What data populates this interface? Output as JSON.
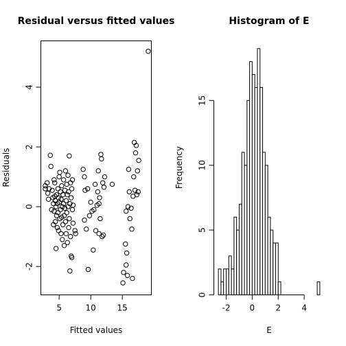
{
  "chart_data": [
    {
      "type": "scatter",
      "title": "Residual versus fitted values",
      "xlabel": "Fitted values",
      "ylabel": "Residuals",
      "xlim": [
        2.1,
        19.6
      ],
      "ylim": [
        -2.95,
        5.55
      ],
      "xticks": [
        5,
        10,
        15
      ],
      "yticks": [
        -2,
        0,
        2,
        4
      ],
      "frame": true,
      "points": [
        [
          19.1,
          5.2
        ],
        [
          2.8,
          0.7
        ],
        [
          2.8,
          0.6
        ],
        [
          3.1,
          0.8
        ],
        [
          3.2,
          0.45
        ],
        [
          3.3,
          0.25
        ],
        [
          3.4,
          0.6
        ],
        [
          3.6,
          1.72
        ],
        [
          3.7,
          1.35
        ],
        [
          3.8,
          -0.1
        ],
        [
          3.9,
          0.55
        ],
        [
          4.0,
          0.3
        ],
        [
          4.1,
          0.1
        ],
        [
          4.1,
          -0.6
        ],
        [
          4.2,
          0.9
        ],
        [
          4.2,
          -0.15
        ],
        [
          4.3,
          0.8
        ],
        [
          4.3,
          0.35
        ],
        [
          4.4,
          0.2
        ],
        [
          4.4,
          -0.5
        ],
        [
          4.5,
          -1.4
        ],
        [
          4.5,
          0.0
        ],
        [
          4.6,
          0.4
        ],
        [
          4.6,
          -0.3
        ],
        [
          4.7,
          0.1
        ],
        [
          4.7,
          -0.7
        ],
        [
          4.8,
          0.6
        ],
        [
          4.8,
          -0.2
        ],
        [
          4.9,
          0.3
        ],
        [
          4.9,
          -0.8
        ],
        [
          5.0,
          1.0
        ],
        [
          5.0,
          0.15
        ],
        [
          5.1,
          -0.4
        ],
        [
          5.1,
          1.15
        ],
        [
          5.2,
          0.5
        ],
        [
          5.2,
          -0.1
        ],
        [
          5.3,
          -0.9
        ],
        [
          5.3,
          0.25
        ],
        [
          5.4,
          0.7
        ],
        [
          5.4,
          -0.35
        ],
        [
          5.5,
          0.0
        ],
        [
          5.5,
          -1.1
        ],
        [
          5.6,
          0.4
        ],
        [
          5.6,
          -0.6
        ],
        [
          5.7,
          0.9
        ],
        [
          5.7,
          0.1
        ],
        [
          5.8,
          -0.3
        ],
        [
          5.8,
          -1.3
        ],
        [
          5.9,
          0.55
        ],
        [
          5.9,
          -0.05
        ],
        [
          6.0,
          1.2
        ],
        [
          6.0,
          -0.5
        ],
        [
          6.1,
          0.2
        ],
        [
          6.1,
          -0.9
        ],
        [
          6.2,
          0.75
        ],
        [
          6.2,
          -0.2
        ],
        [
          6.3,
          0.4
        ],
        [
          6.3,
          -1.2
        ],
        [
          6.4,
          1.05
        ],
        [
          6.4,
          0.0
        ],
        [
          6.5,
          -0.7
        ],
        [
          6.5,
          0.5
        ],
        [
          6.6,
          1.7
        ],
        [
          6.6,
          -0.4
        ],
        [
          6.7,
          0.1
        ],
        [
          6.7,
          -2.15
        ],
        [
          6.8,
          0.8
        ],
        [
          6.8,
          -1.0
        ],
        [
          6.9,
          0.3
        ],
        [
          6.9,
          -1.65
        ],
        [
          7.0,
          -1.7
        ],
        [
          7.0,
          0.6
        ],
        [
          7.1,
          0.9
        ],
        [
          7.1,
          -0.1
        ],
        [
          7.2,
          0.05
        ],
        [
          7.2,
          -0.55
        ],
        [
          7.5,
          -0.8
        ],
        [
          7.6,
          -0.9
        ],
        [
          8.8,
          1.25
        ],
        [
          9.0,
          1.0
        ],
        [
          9.1,
          0.55
        ],
        [
          9.0,
          -0.45
        ],
        [
          9.3,
          -0.75
        ],
        [
          9.5,
          0.6
        ],
        [
          9.6,
          -2.1
        ],
        [
          9.8,
          -0.3
        ],
        [
          10.0,
          0.15
        ],
        [
          10.2,
          -0.15
        ],
        [
          10.4,
          -1.45
        ],
        [
          10.5,
          -0.1
        ],
        [
          10.7,
          0.75
        ],
        [
          10.8,
          -0.8
        ],
        [
          11.0,
          0.05
        ],
        [
          11.1,
          0.5
        ],
        [
          11.2,
          1.2
        ],
        [
          11.3,
          -0.9
        ],
        [
          11.3,
          0.1
        ],
        [
          11.4,
          0.3
        ],
        [
          11.5,
          -0.4
        ],
        [
          11.6,
          1.75
        ],
        [
          11.7,
          1.6
        ],
        [
          11.8,
          -1.0
        ],
        [
          11.9,
          0.8
        ],
        [
          12.0,
          -0.95
        ],
        [
          12.1,
          0.65
        ],
        [
          12.2,
          1.0
        ],
        [
          13.4,
          0.75
        ],
        [
          15.1,
          -2.55
        ],
        [
          15.2,
          -2.2
        ],
        [
          15.5,
          -1.25
        ],
        [
          15.6,
          -0.15
        ],
        [
          15.6,
          -1.95
        ],
        [
          15.7,
          -1.55
        ],
        [
          15.8,
          -2.3
        ],
        [
          15.9,
          0.0
        ],
        [
          16.0,
          1.25
        ],
        [
          16.1,
          0.5
        ],
        [
          16.2,
          -0.4
        ],
        [
          16.4,
          -0.05
        ],
        [
          16.5,
          -0.75
        ],
        [
          16.6,
          -2.4
        ],
        [
          16.7,
          0.35
        ],
        [
          16.8,
          1.0
        ],
        [
          16.9,
          2.15
        ],
        [
          17.0,
          0.55
        ],
        [
          17.1,
          1.8
        ],
        [
          17.2,
          2.05
        ],
        [
          17.3,
          0.4
        ],
        [
          17.4,
          1.2
        ],
        [
          17.5,
          0.5
        ],
        [
          17.6,
          1.55
        ]
      ]
    },
    {
      "type": "bar",
      "subtype": "histogram",
      "title": "Histogram of E",
      "xlabel": "E",
      "ylabel": "Frequency",
      "xlim": [
        -2.95,
        5.55
      ],
      "ylim": [
        0,
        19.6
      ],
      "xticks": [
        -2,
        0,
        2,
        4
      ],
      "yticks": [
        0,
        5,
        10,
        15
      ],
      "frame": false,
      "bin_start": -2.6,
      "bin_width": 0.2,
      "values": [
        2,
        1,
        2,
        2,
        3,
        2,
        6,
        5,
        7,
        11,
        10,
        15,
        18,
        17,
        16,
        19,
        16,
        11,
        10,
        6,
        5,
        4,
        4,
        1,
        0,
        0,
        0,
        0,
        0,
        0,
        0,
        0,
        0,
        0,
        0,
        0,
        0,
        0,
        1
      ]
    }
  ]
}
